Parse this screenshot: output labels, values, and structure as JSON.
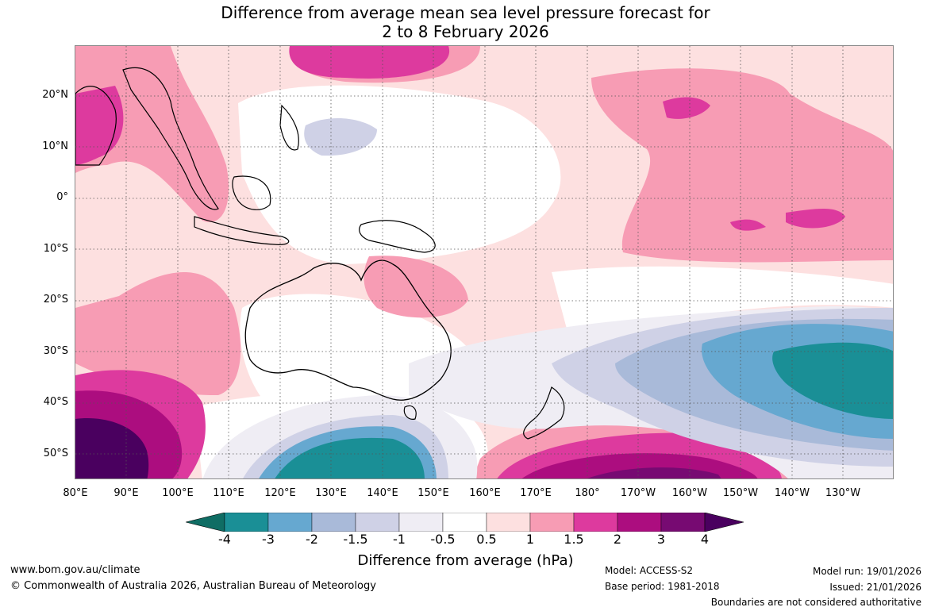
{
  "title": {
    "line1": "Difference from average mean sea level pressure forecast for",
    "line2": "2 to 8 February 2026"
  },
  "axes": {
    "lat_labels": [
      "20°N",
      "10°N",
      "0°",
      "10°S",
      "20°S",
      "30°S",
      "40°S",
      "50°S"
    ],
    "lon_labels": [
      "80°E",
      "90°E",
      "100°E",
      "110°E",
      "120°E",
      "130°E",
      "140°E",
      "150°E",
      "160°E",
      "170°E",
      "180°",
      "170°W",
      "160°W",
      "150°W",
      "140°W",
      "130°W"
    ]
  },
  "colorbar": {
    "ticks": [
      "-4",
      "-3",
      "-2",
      "-1.5",
      "-1",
      "-0.5",
      "0.5",
      "1",
      "1.5",
      "2",
      "3",
      "4"
    ],
    "colors": [
      "#0f6d64",
      "#1a8f96",
      "#66a8d0",
      "#a9bad9",
      "#cfd1e6",
      "#efedf4",
      "#ffffff",
      "#fde0e0",
      "#f79cb4",
      "#dd3a9e",
      "#ac0d7f",
      "#770a72",
      "#4a005f"
    ],
    "label": "Difference from average (hPa)"
  },
  "footer": {
    "website": "www.bom.gov.au/climate",
    "copyright": "© Commonwealth of Australia 2026, Australian Bureau of Meteorology",
    "model": "Model: ACCESS-S2",
    "base_period": "Base period: 1981-2018",
    "model_run": "Model run: 19/01/2026",
    "issued": "Issued: 21/01/2026",
    "disclaimer": "Boundaries are not considered authoritative"
  }
}
